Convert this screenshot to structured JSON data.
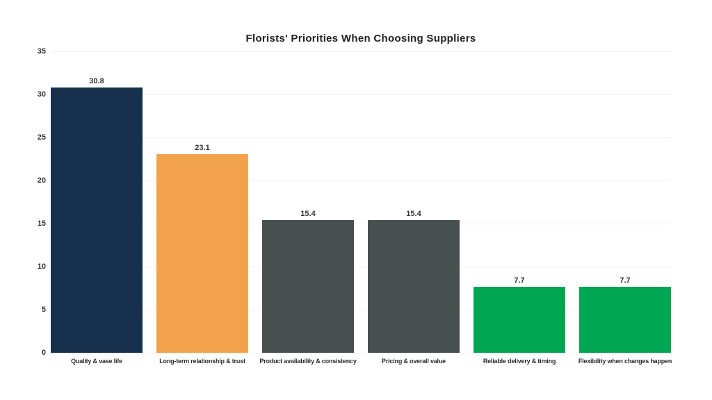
{
  "chart_data": {
    "type": "bar",
    "title": "Florists' Priorities When Choosing Suppliers",
    "categories": [
      "Quality & vase life",
      "Long-term relationship & trust",
      "Product availability & consistency",
      "Pricing & overall value",
      "Reliable delivery & timing",
      "Flexibility when changes happen"
    ],
    "values": [
      30.8,
      23.1,
      15.4,
      15.4,
      7.7,
      7.7
    ],
    "value_labels": [
      "30.8",
      "23.1",
      "15.4",
      "15.4",
      "7.7",
      "7.7"
    ],
    "bar_colors": [
      "#16304E",
      "#F2A24D",
      "#474F4F",
      "#474F4F",
      "#00A651",
      "#00A651"
    ],
    "xlabel": "",
    "ylabel": "",
    "ylim": [
      0,
      35
    ],
    "yticks": [
      "0",
      "5",
      "10",
      "15",
      "20",
      "25",
      "30",
      "35"
    ],
    "grid": true,
    "legend": false
  },
  "colors": {
    "background": "#FFFFFF",
    "gridline": "#EFEFEF",
    "tick_label": "#333333",
    "value_label": "#333333",
    "category_label": "#2B2B2B",
    "title": "#222222"
  }
}
